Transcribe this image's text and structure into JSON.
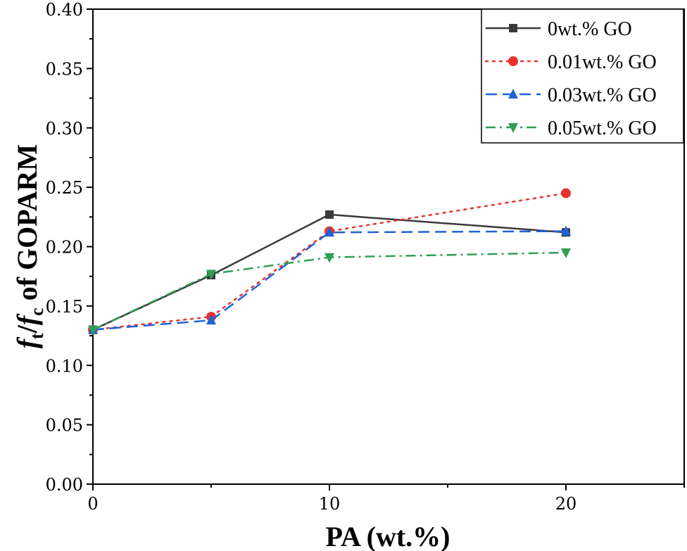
{
  "chart_data": {
    "type": "line",
    "xlabel": "PA (wt.%)",
    "ylabel": {
      "lead": "f",
      "sub1": "t",
      "slash": "/",
      "mid": "f",
      "sub2": "c",
      "tail": " of GOPARM"
    },
    "xlim": [
      0,
      25
    ],
    "ylim": [
      0,
      0.4
    ],
    "x_ticks": [
      0,
      10,
      20
    ],
    "x_minor_ticks": [
      5,
      15,
      25
    ],
    "y_ticks": [
      "0.00",
      "0.05",
      "0.10",
      "0.15",
      "0.20",
      "0.25",
      "0.30",
      "0.35",
      "0.40"
    ],
    "legend_position": "top-right",
    "x": [
      0,
      5,
      10,
      20
    ],
    "series": [
      {
        "name": "0wt.% GO",
        "values": [
          0.13,
          0.176,
          0.227,
          0.212
        ],
        "color": "#3a3a3a",
        "marker": "square",
        "dash": "solid"
      },
      {
        "name": "0.01wt.% GO",
        "values": [
          0.13,
          0.141,
          0.213,
          0.245
        ],
        "color": "#e8322e",
        "marker": "circle",
        "dash": "dotted"
      },
      {
        "name": "0.03wt.% GO",
        "values": [
          0.13,
          0.138,
          0.212,
          0.213
        ],
        "color": "#1f63d6",
        "marker": "triangle-up",
        "dash": "dashed"
      },
      {
        "name": "0.05wt.% GO",
        "values": [
          0.13,
          0.177,
          0.191,
          0.195
        ],
        "color": "#2f9e58",
        "marker": "triangle-down",
        "dash": "dashdot"
      }
    ]
  }
}
